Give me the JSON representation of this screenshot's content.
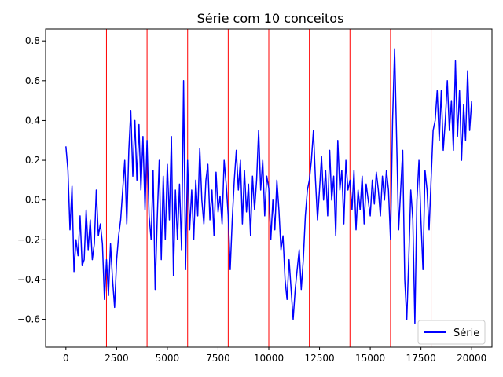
{
  "chart_data": {
    "type": "line",
    "title": "Série com 10 conceitos",
    "xlabel": "",
    "ylabel": "",
    "xlim": [
      -1000,
      21000
    ],
    "ylim": [
      -0.74,
      0.86
    ],
    "x_ticks": [
      0,
      2500,
      5000,
      7500,
      10000,
      12500,
      15000,
      17500,
      20000
    ],
    "y_ticks": [
      -0.6,
      -0.4,
      -0.2,
      0.0,
      0.2,
      0.4,
      0.6,
      0.8
    ],
    "x_tick_labels": [
      "0",
      "2500",
      "5000",
      "7500",
      "10000",
      "12500",
      "15000",
      "17500",
      "20000"
    ],
    "y_tick_labels": [
      "−0.6",
      "−0.4",
      "−0.2",
      "0.0",
      "0.2",
      "0.4",
      "0.6",
      "0.8"
    ],
    "grid": false,
    "legend": {
      "position": "lower-right",
      "entries": [
        "Série"
      ]
    },
    "concept_boundaries": [
      2000,
      4000,
      6000,
      8000,
      10000,
      12000,
      14000,
      16000,
      18000
    ],
    "boundary_color": "#ff0000",
    "series": [
      {
        "name": "Série",
        "color": "#0000ff",
        "x": [
          0,
          100,
          200,
          300,
          400,
          500,
          600,
          700,
          800,
          900,
          1000,
          1100,
          1200,
          1300,
          1400,
          1500,
          1600,
          1700,
          1800,
          1900,
          2000,
          2100,
          2200,
          2300,
          2400,
          2500,
          2600,
          2700,
          2800,
          2900,
          3000,
          3100,
          3200,
          3300,
          3400,
          3500,
          3600,
          3700,
          3800,
          3900,
          4000,
          4100,
          4200,
          4300,
          4400,
          4500,
          4600,
          4700,
          4800,
          4900,
          5000,
          5100,
          5200,
          5300,
          5400,
          5500,
          5600,
          5700,
          5800,
          5900,
          6000,
          6100,
          6200,
          6300,
          6400,
          6500,
          6600,
          6700,
          6800,
          6900,
          7000,
          7100,
          7200,
          7300,
          7400,
          7500,
          7600,
          7700,
          7800,
          7900,
          8000,
          8100,
          8200,
          8300,
          8400,
          8500,
          8600,
          8700,
          8800,
          8900,
          9000,
          9100,
          9200,
          9300,
          9400,
          9500,
          9600,
          9700,
          9800,
          9900,
          10000,
          10100,
          10200,
          10300,
          10400,
          10500,
          10600,
          10700,
          10800,
          10900,
          11000,
          11100,
          11200,
          11300,
          11400,
          11500,
          11600,
          11700,
          11800,
          11900,
          12000,
          12100,
          12200,
          12300,
          12400,
          12500,
          12600,
          12700,
          12800,
          12900,
          13000,
          13100,
          13200,
          13300,
          13400,
          13500,
          13600,
          13700,
          13800,
          13900,
          14000,
          14100,
          14200,
          14300,
          14400,
          14500,
          14600,
          14700,
          14800,
          14900,
          15000,
          15100,
          15200,
          15300,
          15400,
          15500,
          15600,
          15700,
          15800,
          15900,
          16000,
          16100,
          16200,
          16300,
          16400,
          16500,
          16600,
          16700,
          16800,
          16900,
          17000,
          17100,
          17200,
          17300,
          17400,
          17500,
          17600,
          17700,
          17800,
          17900,
          18000,
          18100,
          18200,
          18300,
          18400,
          18500,
          18600,
          18700,
          18800,
          18900,
          19000,
          19100,
          19200,
          19300,
          19400,
          19500,
          19600,
          19700,
          19800,
          19900,
          20000
        ],
        "y": [
          0.27,
          0.15,
          -0.15,
          0.07,
          -0.36,
          -0.2,
          -0.28,
          -0.08,
          -0.33,
          -0.3,
          -0.05,
          -0.25,
          -0.1,
          -0.3,
          -0.22,
          0.05,
          -0.18,
          -0.12,
          -0.22,
          -0.5,
          -0.3,
          -0.48,
          -0.22,
          -0.4,
          -0.54,
          -0.3,
          -0.18,
          -0.1,
          0.05,
          0.2,
          -0.12,
          0.25,
          0.45,
          0.12,
          0.4,
          0.1,
          0.38,
          0.05,
          0.32,
          -0.05,
          0.3,
          -0.08,
          -0.2,
          0.15,
          -0.45,
          -0.1,
          0.2,
          -0.3,
          0.12,
          -0.2,
          0.18,
          -0.1,
          0.32,
          -0.38,
          0.05,
          -0.2,
          0.08,
          -0.25,
          0.6,
          -0.35,
          0.2,
          -0.15,
          0.05,
          -0.2,
          0.1,
          -0.08,
          0.26,
          0.0,
          -0.12,
          0.1,
          0.18,
          -0.1,
          0.05,
          -0.18,
          0.14,
          -0.06,
          0.02,
          -0.12,
          0.2,
          0.08,
          -0.08,
          -0.35,
          -0.1,
          0.1,
          0.25,
          0.05,
          0.2,
          -0.12,
          0.15,
          -0.06,
          0.08,
          -0.18,
          0.12,
          -0.05,
          0.1,
          0.35,
          0.05,
          0.2,
          -0.08,
          0.12,
          0.06,
          -0.2,
          0.0,
          -0.15,
          0.1,
          -0.05,
          -0.25,
          -0.18,
          -0.4,
          -0.5,
          -0.3,
          -0.45,
          -0.6,
          -0.45,
          -0.35,
          -0.25,
          -0.45,
          -0.3,
          -0.08,
          0.05,
          0.1,
          0.2,
          0.35,
          0.1,
          -0.1,
          0.05,
          0.22,
          0.0,
          0.15,
          -0.08,
          0.25,
          0.0,
          0.12,
          -0.18,
          0.3,
          0.05,
          0.15,
          -0.12,
          0.2,
          0.05,
          0.1,
          -0.05,
          0.15,
          -0.15,
          0.05,
          -0.05,
          0.12,
          -0.12,
          0.08,
          0.0,
          -0.08,
          0.1,
          -0.02,
          0.14,
          0.05,
          -0.08,
          0.12,
          0.0,
          0.15,
          0.05,
          -0.2,
          0.4,
          0.76,
          0.3,
          -0.15,
          0.05,
          0.25,
          -0.4,
          -0.6,
          -0.3,
          0.05,
          -0.1,
          -0.62,
          0.0,
          0.2,
          -0.1,
          -0.35,
          0.15,
          0.05,
          -0.15,
          0.1,
          0.35,
          0.4,
          0.55,
          0.3,
          0.55,
          0.25,
          0.4,
          0.6,
          0.35,
          0.5,
          0.25,
          0.7,
          0.32,
          0.55,
          0.2,
          0.48,
          0.3,
          0.65,
          0.35,
          0.5
        ]
      }
    ]
  }
}
